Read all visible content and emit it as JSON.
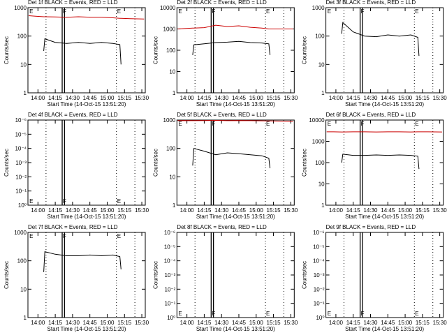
{
  "chart_data": [
    {
      "type": "line",
      "title": "Det 1f BLACK = Events, RED = LLD",
      "xlabel": "Start Time (14-Oct-15 13:51:20)",
      "ylabel": "Counts/sec",
      "yscale": "log",
      "ylim": [
        1,
        1000
      ],
      "yticks": [
        1,
        10,
        100,
        1000
      ],
      "xlim": [
        "13:51:20",
        "15:33:00"
      ],
      "xticks": [
        "14:00",
        "14:15",
        "14:30",
        "14:45",
        "15:00",
        "15:15",
        "15:30"
      ],
      "x": [
        "13:52",
        "13:58",
        "14:05",
        "14:06",
        "14:15",
        "14:25",
        "14:35",
        "14:45",
        "14:55",
        "15:05",
        "15:11",
        "15:12",
        "15:20",
        "15:32"
      ],
      "series": [
        {
          "color": "#000000",
          "values": [
            null,
            null,
            30,
            80,
            60,
            55,
            60,
            55,
            60,
            55,
            50,
            10,
            null,
            null
          ]
        },
        {
          "color": "#cc0000",
          "values": [
            520,
            500,
            480,
            480,
            470,
            460,
            480,
            460,
            460,
            440,
            420,
            420,
            410,
            400
          ]
        }
      ],
      "vlines": [
        {
          "x": "14:07",
          "style": "dotted"
        },
        {
          "x": "14:21",
          "style": "solid"
        },
        {
          "x": "14:23",
          "style": "solid"
        },
        {
          "x": "15:08",
          "style": "dotted"
        },
        {
          "x": "15:24",
          "style": "dotted"
        }
      ],
      "annotations": [
        {
          "text": "E",
          "x": "13:52"
        },
        {
          "text": "F",
          "x": "14:21"
        },
        {
          "text": "E",
          "x": "15:08"
        }
      ],
      "annotation_position": "top"
    },
    {
      "type": "line",
      "title": "Det 2f BLACK = Events, RED = LLD",
      "xlabel": "Start Time (14-Oct-15 13:51:20)",
      "ylabel": "Counts/sec",
      "yscale": "log",
      "ylim": [
        1,
        10000
      ],
      "yticks": [
        1,
        10,
        100,
        1000,
        10000
      ],
      "xlim": [
        "13:51:20",
        "15:33:00"
      ],
      "xticks": [
        "14:00",
        "14:15",
        "14:30",
        "14:45",
        "15:00",
        "15:15",
        "15:30"
      ],
      "x": [
        "13:52",
        "13:58",
        "14:05",
        "14:06",
        "14:15",
        "14:25",
        "14:35",
        "14:45",
        "14:55",
        "15:05",
        "15:11",
        "15:12",
        "15:20",
        "15:32"
      ],
      "series": [
        {
          "color": "#000000",
          "values": [
            null,
            null,
            60,
            180,
            200,
            230,
            240,
            260,
            230,
            220,
            200,
            60,
            null,
            null
          ]
        },
        {
          "color": "#cc0000",
          "values": [
            1000,
            1050,
            1100,
            1100,
            1150,
            1500,
            1300,
            1400,
            1200,
            1100,
            1000,
            1000,
            1000,
            1000
          ]
        }
      ],
      "vlines": [
        {
          "x": "14:07",
          "style": "dotted"
        },
        {
          "x": "14:21",
          "style": "solid"
        },
        {
          "x": "14:23",
          "style": "solid"
        },
        {
          "x": "15:08",
          "style": "dotted"
        },
        {
          "x": "15:24",
          "style": "dotted"
        }
      ],
      "annotations": [
        {
          "text": "E",
          "x": "13:52"
        },
        {
          "text": "F",
          "x": "14:21"
        },
        {
          "text": "E",
          "x": "15:08"
        }
      ],
      "annotation_position": "top"
    },
    {
      "type": "line",
      "title": "Det 3f BLACK = Events, RED = LLD",
      "xlabel": "Start Time (14-Oct-15 13:51:20)",
      "ylabel": "Counts/sec",
      "yscale": "log",
      "ylim": [
        1,
        1000
      ],
      "yticks": [
        1,
        10,
        100,
        1000
      ],
      "xlim": [
        "13:51:20",
        "15:33:00"
      ],
      "xticks": [
        "14:00",
        "14:15",
        "14:30",
        "14:45",
        "15:00",
        "15:15",
        "15:30"
      ],
      "x": [
        "13:52",
        "13:58",
        "14:05",
        "14:06",
        "14:15",
        "14:25",
        "14:35",
        "14:45",
        "14:55",
        "15:05",
        "15:11",
        "15:12",
        "15:20",
        "15:32"
      ],
      "series": [
        {
          "color": "#000000",
          "values": [
            null,
            null,
            120,
            300,
            140,
            100,
            95,
            110,
            100,
            110,
            90,
            20,
            null,
            null
          ]
        }
      ],
      "vlines": [
        {
          "x": "14:07",
          "style": "dotted"
        },
        {
          "x": "14:21",
          "style": "solid"
        },
        {
          "x": "14:23",
          "style": "solid"
        },
        {
          "x": "15:08",
          "style": "dotted"
        },
        {
          "x": "15:24",
          "style": "dotted"
        }
      ],
      "annotations": [
        {
          "text": "E",
          "x": "13:52"
        },
        {
          "text": "F",
          "x": "14:21"
        },
        {
          "text": "E",
          "x": "15:08"
        }
      ],
      "annotation_position": "top"
    },
    {
      "type": "line",
      "title": "Det 4f BLACK = Events, RED = LLD",
      "xlabel": "Start Time (14-Oct-15 13:51:20)",
      "ylabel": "Counts/sec",
      "yscale": "log",
      "ylim": [
        1,
        1e-06
      ],
      "yticks": [
        {
          "value": 1,
          "label": "10⁰"
        },
        {
          "value": 0.1,
          "label": "10⁻¹"
        },
        {
          "value": 0.01,
          "label": "10⁻²"
        },
        {
          "value": 0.001,
          "label": "10⁻³"
        },
        {
          "value": 0.0001,
          "label": "10⁻⁴"
        },
        {
          "value": 1e-05,
          "label": "10⁻⁵"
        },
        {
          "value": 1e-06,
          "label": "10⁻⁶"
        }
      ],
      "xlim": [
        "13:51:20",
        "15:33:00"
      ],
      "xticks": [
        "14:00",
        "14:15",
        "14:30",
        "14:45",
        "15:00",
        "15:15",
        "15:30"
      ],
      "vlines": [
        {
          "x": "14:07",
          "style": "dotted"
        },
        {
          "x": "14:21",
          "style": "solid"
        },
        {
          "x": "14:23",
          "style": "solid"
        },
        {
          "x": "15:08",
          "style": "dotted"
        },
        {
          "x": "15:24",
          "style": "dotted"
        }
      ],
      "annotations": [
        {
          "text": "E",
          "x": "13:52"
        },
        {
          "text": "F",
          "x": "14:21"
        },
        {
          "text": "E",
          "x": "15:08"
        }
      ],
      "annotation_position": "bottom"
    },
    {
      "type": "line",
      "title": "Det 5f BLACK = Events, RED = LLD",
      "xlabel": "Start Time (14-Oct-15 13:51:20)",
      "ylabel": "Counts/sec",
      "yscale": "log",
      "ylim": [
        1,
        1000
      ],
      "yticks": [
        1,
        10,
        100,
        1000
      ],
      "xlim": [
        "13:51:20",
        "15:33:00"
      ],
      "xticks": [
        "14:00",
        "14:15",
        "14:30",
        "14:45",
        "15:00",
        "15:15",
        "15:30"
      ],
      "x": [
        "13:52",
        "13:58",
        "14:05",
        "14:06",
        "14:15",
        "14:25",
        "14:35",
        "14:45",
        "14:55",
        "15:05",
        "15:11",
        "15:12",
        "15:20",
        "15:32"
      ],
      "series": [
        {
          "color": "#000000",
          "values": [
            null,
            null,
            25,
            100,
            80,
            60,
            70,
            65,
            60,
            55,
            45,
            20,
            null,
            null
          ]
        },
        {
          "color": "#cc0000",
          "values": [
            950,
            960,
            950,
            950,
            960,
            970,
            950,
            960,
            950,
            940,
            930,
            930,
            920,
            900
          ]
        }
      ],
      "vlines": [
        {
          "x": "14:07",
          "style": "dotted"
        },
        {
          "x": "14:21",
          "style": "solid"
        },
        {
          "x": "14:23",
          "style": "solid"
        },
        {
          "x": "15:08",
          "style": "dotted"
        },
        {
          "x": "15:24",
          "style": "dotted"
        }
      ],
      "annotations": [
        {
          "text": "E",
          "x": "13:52"
        },
        {
          "text": "F",
          "x": "14:21"
        },
        {
          "text": "E",
          "x": "15:08"
        }
      ],
      "annotation_position": "top"
    },
    {
      "type": "line",
      "title": "Det 6f BLACK = Events, RED = LLD",
      "xlabel": "Start Time (14-Oct-15 13:51:20)",
      "ylabel": "Counts/sec",
      "yscale": "log",
      "ylim": [
        1,
        10000
      ],
      "yticks": [
        1,
        10,
        100,
        1000,
        10000
      ],
      "xlim": [
        "13:51:20",
        "15:33:00"
      ],
      "xticks": [
        "14:00",
        "14:15",
        "14:30",
        "14:45",
        "15:00",
        "15:15",
        "15:30"
      ],
      "x": [
        "13:52",
        "13:58",
        "14:05",
        "14:06",
        "14:15",
        "14:25",
        "14:35",
        "14:45",
        "14:55",
        "15:05",
        "15:11",
        "15:12",
        "15:20",
        "15:32"
      ],
      "series": [
        {
          "color": "#000000",
          "values": [
            null,
            null,
            100,
            250,
            220,
            220,
            230,
            220,
            230,
            220,
            200,
            50,
            null,
            null
          ]
        },
        {
          "color": "#cc0000",
          "values": [
            2800,
            2800,
            2750,
            2750,
            2800,
            2800,
            2750,
            2800,
            2800,
            2750,
            2800,
            2800,
            2800,
            2750
          ]
        }
      ],
      "vlines": [
        {
          "x": "14:07",
          "style": "dotted"
        },
        {
          "x": "14:21",
          "style": "solid"
        },
        {
          "x": "14:23",
          "style": "solid"
        },
        {
          "x": "15:08",
          "style": "dotted"
        },
        {
          "x": "15:24",
          "style": "dotted"
        }
      ],
      "annotations": [
        {
          "text": "E",
          "x": "13:52"
        },
        {
          "text": "F",
          "x": "14:21"
        },
        {
          "text": "E",
          "x": "15:08"
        }
      ],
      "annotation_position": "top"
    },
    {
      "type": "line",
      "title": "Det 7f BLACK = Events, RED = LLD",
      "xlabel": "Start Time (14-Oct-15 13:51:20)",
      "ylabel": "Counts/sec",
      "yscale": "log",
      "ylim": [
        1,
        1000
      ],
      "yticks": [
        1,
        10,
        100,
        1000
      ],
      "xlim": [
        "13:51:20",
        "15:33:00"
      ],
      "xticks": [
        "14:00",
        "14:15",
        "14:30",
        "14:45",
        "15:00",
        "15:15",
        "15:30"
      ],
      "x": [
        "13:52",
        "13:58",
        "14:05",
        "14:06",
        "14:15",
        "14:25",
        "14:35",
        "14:45",
        "14:55",
        "15:05",
        "15:11",
        "15:12",
        "15:20",
        "15:32"
      ],
      "series": [
        {
          "color": "#000000",
          "values": [
            null,
            null,
            40,
            210,
            170,
            150,
            150,
            160,
            150,
            160,
            140,
            50,
            null,
            null
          ]
        }
      ],
      "vlines": [
        {
          "x": "14:07",
          "style": "dotted"
        },
        {
          "x": "14:21",
          "style": "solid"
        },
        {
          "x": "14:23",
          "style": "solid"
        },
        {
          "x": "15:08",
          "style": "dotted"
        },
        {
          "x": "15:24",
          "style": "dotted"
        }
      ],
      "annotations": [
        {
          "text": "E",
          "x": "13:52"
        },
        {
          "text": "F",
          "x": "14:21"
        },
        {
          "text": "E",
          "x": "15:08"
        }
      ],
      "annotation_position": "top"
    },
    {
      "type": "line",
      "title": "Det 8f BLACK = Events, RED = LLD",
      "xlabel": "Start Time (14-Oct-15 13:51:20)",
      "ylabel": "Counts/sec",
      "yscale": "log",
      "ylim": [
        1,
        1e-06
      ],
      "yticks": [
        {
          "value": 1,
          "label": "10⁰"
        },
        {
          "value": 0.1,
          "label": "10⁻¹"
        },
        {
          "value": 0.01,
          "label": "10⁻²"
        },
        {
          "value": 0.001,
          "label": "10⁻³"
        },
        {
          "value": 0.0001,
          "label": "10⁻⁴"
        },
        {
          "value": 1e-05,
          "label": "10⁻⁵"
        },
        {
          "value": 1e-06,
          "label": "10⁻⁶"
        }
      ],
      "xlim": [
        "13:51:20",
        "15:33:00"
      ],
      "xticks": [
        "14:00",
        "14:15",
        "14:30",
        "14:45",
        "15:00",
        "15:15",
        "15:30"
      ],
      "vlines": [
        {
          "x": "14:07",
          "style": "dotted"
        },
        {
          "x": "14:21",
          "style": "solid"
        },
        {
          "x": "14:23",
          "style": "solid"
        },
        {
          "x": "15:08",
          "style": "dotted"
        },
        {
          "x": "15:24",
          "style": "dotted"
        }
      ],
      "annotations": [
        {
          "text": "E",
          "x": "13:52"
        },
        {
          "text": "F",
          "x": "14:21"
        },
        {
          "text": "E",
          "x": "15:08"
        }
      ],
      "annotation_position": "bottom"
    },
    {
      "type": "line",
      "title": "Det 9f BLACK = Events, RED = LLD",
      "xlabel": "Start Time (14-Oct-15 13:51:20)",
      "ylabel": "Counts/sec",
      "yscale": "log",
      "ylim": [
        1,
        1e-06
      ],
      "yticks": [
        {
          "value": 1,
          "label": "10⁰"
        },
        {
          "value": 0.1,
          "label": "10⁻¹"
        },
        {
          "value": 0.01,
          "label": "10⁻²"
        },
        {
          "value": 0.001,
          "label": "10⁻³"
        },
        {
          "value": 0.0001,
          "label": "10⁻⁴"
        },
        {
          "value": 1e-05,
          "label": "10⁻⁵"
        },
        {
          "value": 1e-06,
          "label": "10⁻⁶"
        }
      ],
      "xlim": [
        "13:51:20",
        "15:33:00"
      ],
      "xticks": [
        "14:00",
        "14:15",
        "14:30",
        "14:45",
        "15:00",
        "15:15",
        "15:30"
      ],
      "vlines": [
        {
          "x": "14:07",
          "style": "dotted"
        },
        {
          "x": "14:21",
          "style": "solid"
        },
        {
          "x": "14:23",
          "style": "solid"
        },
        {
          "x": "15:08",
          "style": "dotted"
        },
        {
          "x": "15:24",
          "style": "dotted"
        }
      ],
      "annotations": [
        {
          "text": "E",
          "x": "13:52"
        },
        {
          "text": "F",
          "x": "14:21"
        },
        {
          "text": "E",
          "x": "15:08"
        }
      ],
      "annotation_position": "bottom"
    }
  ]
}
